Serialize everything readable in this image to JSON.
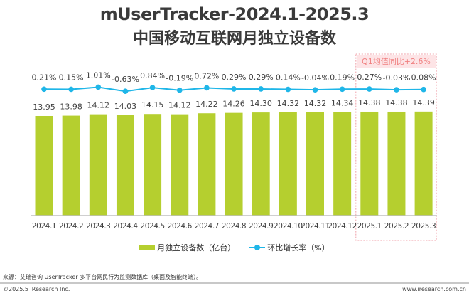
{
  "title_line1": "mUserTracker-2024.1-2025.3",
  "title_line2": "中国移动互联网月独立设备数",
  "chart_data": {
    "type": "bar",
    "title": "mUserTracker-2024.1-2025.3 中国移动互联网月独立设备数",
    "categories": [
      "2024.1",
      "2024.2",
      "2024.3",
      "2024.4",
      "2024.5",
      "2024.6",
      "2024.7",
      "2024.8",
      "2024.9",
      "2024.10",
      "2024.11",
      "2024.12",
      "2025.1",
      "2025.2",
      "2025.3"
    ],
    "series": [
      {
        "name": "月独立设备数（亿台）",
        "type": "bar",
        "color": "#b5cf2f",
        "values": [
          13.95,
          13.98,
          14.12,
          14.03,
          14.15,
          14.12,
          14.22,
          14.26,
          14.3,
          14.32,
          14.32,
          14.34,
          14.38,
          14.38,
          14.39
        ],
        "labels": [
          "13.95",
          "13.98",
          "14.12",
          "14.03",
          "14.15",
          "14.12",
          "14.22",
          "14.26",
          "14.30",
          "14.32",
          "14.32",
          "14.34",
          "14.38",
          "14.38",
          "14.39"
        ]
      },
      {
        "name": "环比增长率（%）",
        "type": "line",
        "color": "#1fb6e8",
        "values": [
          0.21,
          0.15,
          1.01,
          -0.63,
          0.84,
          -0.19,
          0.72,
          0.29,
          0.29,
          0.14,
          -0.04,
          0.19,
          0.27,
          -0.03,
          0.08
        ],
        "labels": [
          "0.21%",
          "0.15%",
          "1.01%",
          "-0.63%",
          "0.84%",
          "-0.19%",
          "0.72%",
          "0.29%",
          "0.29%",
          "0.14%",
          "-0.04%",
          "0.19%",
          "0.27%",
          "-0.03%",
          "0.08%"
        ]
      }
    ],
    "annotation": {
      "text": "Q1均值同比+2.6%",
      "range": [
        "2025.1",
        "2025.3"
      ],
      "color": "#f08080"
    },
    "xlabel": "",
    "ylabel": "",
    "grid": false,
    "legend_position": "bottom"
  },
  "footer": {
    "source": "来源：艾瑞咨询 UserTracker 多平台网民行为监测数据库（桌面及智能终端）。",
    "copyright": "©2025.5 iResearch Inc.",
    "website": "www.iresearch.com.cn"
  }
}
